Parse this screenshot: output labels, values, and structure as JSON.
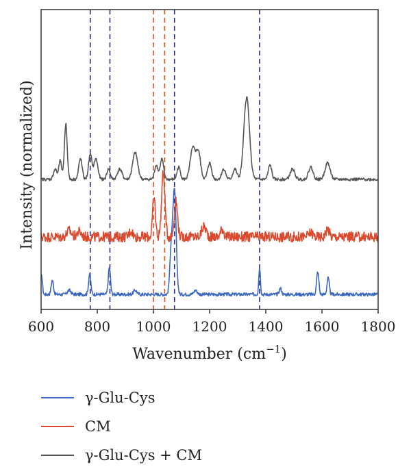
{
  "chart_data": {
    "type": "line",
    "title": "",
    "xlabel": "Wavenumber (cm",
    "xlabel_sup": "−1",
    "xlabel_tail": ")",
    "ylabel": "Intensity (normalized)",
    "xlim": [
      600,
      1800
    ],
    "xticks": [
      "600",
      "800",
      "1000",
      "1200",
      "1400",
      "1600",
      "1800"
    ],
    "y_ticks_shown": false,
    "legend_position": "bottom",
    "vlines": [
      {
        "x": 775,
        "color": "#2b2b8c"
      },
      {
        "x": 845,
        "color": "#2b2b8c"
      },
      {
        "x": 1000,
        "color": "#d9501e"
      },
      {
        "x": 1040,
        "color": "#d9501e"
      },
      {
        "x": 1075,
        "color": "#2b2b8c"
      },
      {
        "x": 1378,
        "color": "#2b2b8c"
      }
    ],
    "series": [
      {
        "name": "γ-Glu-Cys",
        "color": "#3a66c0",
        "baseline": 0.0,
        "peaks": [
          {
            "x": 602,
            "h": 0.09,
            "w": 3
          },
          {
            "x": 640,
            "h": 0.07,
            "w": 4
          },
          {
            "x": 700,
            "h": 0.02,
            "w": 6
          },
          {
            "x": 773,
            "h": 0.1,
            "w": 4
          },
          {
            "x": 843,
            "h": 0.13,
            "w": 4
          },
          {
            "x": 935,
            "h": 0.02,
            "w": 6
          },
          {
            "x": 1063,
            "h": 0.2,
            "w": 5
          },
          {
            "x": 1075,
            "h": 0.5,
            "w": 6
          },
          {
            "x": 1150,
            "h": 0.02,
            "w": 6
          },
          {
            "x": 1378,
            "h": 0.13,
            "w": 3
          },
          {
            "x": 1452,
            "h": 0.03,
            "w": 4
          },
          {
            "x": 1585,
            "h": 0.11,
            "w": 4
          },
          {
            "x": 1622,
            "h": 0.08,
            "w": 4
          }
        ],
        "noise": 0.008
      },
      {
        "name": "CM",
        "color": "#d94a2e",
        "baseline": 0.28,
        "peaks": [
          {
            "x": 700,
            "h": 0.03,
            "w": 8
          },
          {
            "x": 735,
            "h": 0.025,
            "w": 8
          },
          {
            "x": 920,
            "h": 0.03,
            "w": 6
          },
          {
            "x": 1002,
            "h": 0.19,
            "w": 5
          },
          {
            "x": 1035,
            "h": 0.31,
            "w": 6
          },
          {
            "x": 1080,
            "h": 0.17,
            "w": 6
          },
          {
            "x": 1180,
            "h": 0.05,
            "w": 8
          },
          {
            "x": 1245,
            "h": 0.04,
            "w": 6
          },
          {
            "x": 1560,
            "h": 0.02,
            "w": 8
          },
          {
            "x": 1620,
            "h": 0.04,
            "w": 6
          }
        ],
        "noise": 0.025
      },
      {
        "name": "γ-Glu-Cys + CM",
        "color": "#555555",
        "baseline": 0.56,
        "peaks": [
          {
            "x": 650,
            "h": 0.05,
            "w": 6
          },
          {
            "x": 668,
            "h": 0.09,
            "w": 5
          },
          {
            "x": 688,
            "h": 0.27,
            "w": 5
          },
          {
            "x": 740,
            "h": 0.1,
            "w": 6
          },
          {
            "x": 775,
            "h": 0.12,
            "w": 6
          },
          {
            "x": 795,
            "h": 0.1,
            "w": 7
          },
          {
            "x": 840,
            "h": 0.05,
            "w": 6
          },
          {
            "x": 880,
            "h": 0.05,
            "w": 8
          },
          {
            "x": 935,
            "h": 0.13,
            "w": 9
          },
          {
            "x": 1010,
            "h": 0.07,
            "w": 6
          },
          {
            "x": 1030,
            "h": 0.1,
            "w": 6
          },
          {
            "x": 1090,
            "h": 0.06,
            "w": 6
          },
          {
            "x": 1140,
            "h": 0.15,
            "w": 9
          },
          {
            "x": 1160,
            "h": 0.13,
            "w": 8
          },
          {
            "x": 1200,
            "h": 0.08,
            "w": 7
          },
          {
            "x": 1250,
            "h": 0.05,
            "w": 7
          },
          {
            "x": 1290,
            "h": 0.05,
            "w": 7
          },
          {
            "x": 1332,
            "h": 0.4,
            "w": 10
          },
          {
            "x": 1415,
            "h": 0.07,
            "w": 6
          },
          {
            "x": 1495,
            "h": 0.05,
            "w": 8
          },
          {
            "x": 1560,
            "h": 0.06,
            "w": 8
          },
          {
            "x": 1620,
            "h": 0.08,
            "w": 9
          }
        ],
        "noise": 0.007
      }
    ]
  }
}
